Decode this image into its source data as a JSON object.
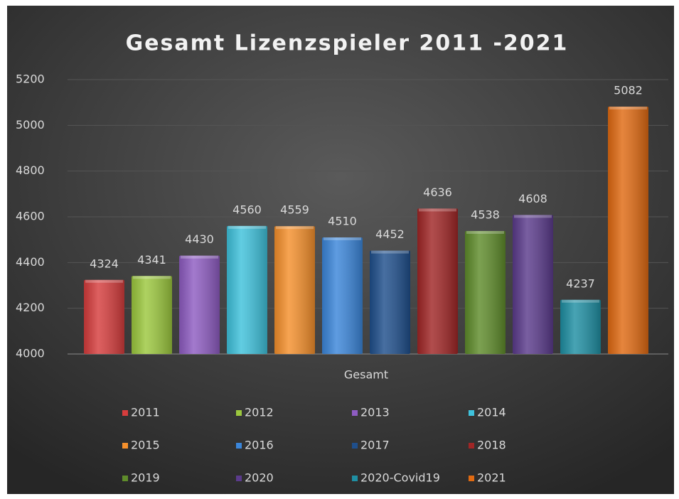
{
  "chart_data": {
    "type": "bar",
    "title": "Gesamt  Lizenzspieler  2011 -2021",
    "categories": [
      "Gesamt"
    ],
    "series": [
      {
        "name": "2011",
        "color": "#d63d3d",
        "values": [
          4324
        ]
      },
      {
        "name": "2012",
        "color": "#9cc83e",
        "values": [
          4341
        ]
      },
      {
        "name": "2013",
        "color": "#8e5cc2",
        "values": [
          4430
        ]
      },
      {
        "name": "2014",
        "color": "#3fc2dc",
        "values": [
          4560
        ]
      },
      {
        "name": "2015",
        "color": "#f5902c",
        "values": [
          4559
        ]
      },
      {
        "name": "2016",
        "color": "#3b86da",
        "values": [
          4510
        ]
      },
      {
        "name": "2017",
        "color": "#1f4f8c",
        "values": [
          4452
        ]
      },
      {
        "name": "2018",
        "color": "#a02626",
        "values": [
          4636
        ]
      },
      {
        "name": "2019",
        "color": "#5f8c2b",
        "values": [
          4538
        ]
      },
      {
        "name": "2020",
        "color": "#5b3b8c",
        "values": [
          4608
        ]
      },
      {
        "name": "2020-Covid19",
        "color": "#1f8fa3",
        "values": [
          4237
        ]
      },
      {
        "name": "2021",
        "color": "#e06a12",
        "values": [
          5082
        ]
      }
    ],
    "ylim": [
      4000,
      5200
    ],
    "yticks": [
      4000,
      4200,
      4400,
      4600,
      4800,
      5000,
      5200
    ],
    "grid": true
  }
}
